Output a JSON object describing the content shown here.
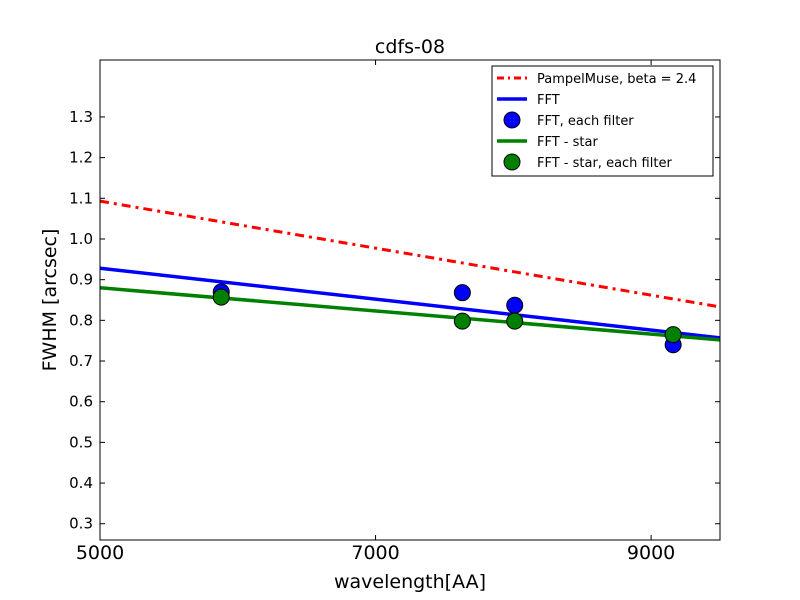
{
  "chart_data": {
    "type": "line",
    "title": "cdfs-08",
    "xlabel": "wavelength[AA]",
    "ylabel": "FWHM [arcsec]",
    "xlim": [
      5000,
      9500
    ],
    "ylim": [
      0.26,
      1.44
    ],
    "xticks": [
      5000,
      7000,
      9000
    ],
    "yticks": [
      0.3,
      0.4,
      0.5,
      0.6,
      0.7,
      0.8,
      0.9,
      1.0,
      1.1,
      1.2,
      1.3
    ],
    "grid": false,
    "legend_position": "top-right",
    "series": [
      {
        "name": "PampelMuse, beta = 2.4",
        "kind": "line",
        "style": "dashdot",
        "color": "#ff0000",
        "x": [
          5000,
          9500
        ],
        "y": [
          1.093,
          0.833
        ]
      },
      {
        "name": "FFT",
        "kind": "line",
        "style": "solid",
        "color": "#0000ff",
        "x": [
          5000,
          9500
        ],
        "y": [
          0.928,
          0.757
        ]
      },
      {
        "name": "FFT, each filter",
        "kind": "scatter",
        "color": "#0000ff",
        "x": [
          5880,
          7630,
          8010,
          9160
        ],
        "y": [
          0.87,
          0.868,
          0.837,
          0.74
        ]
      },
      {
        "name": "FFT - star",
        "kind": "line",
        "style": "solid",
        "color": "#008000",
        "x": [
          5000,
          9500
        ],
        "y": [
          0.88,
          0.752
        ]
      },
      {
        "name": "FFT - star, each filter",
        "kind": "scatter",
        "color": "#008000",
        "x": [
          5880,
          7630,
          8010,
          9160
        ],
        "y": [
          0.857,
          0.798,
          0.798,
          0.765
        ]
      }
    ]
  }
}
